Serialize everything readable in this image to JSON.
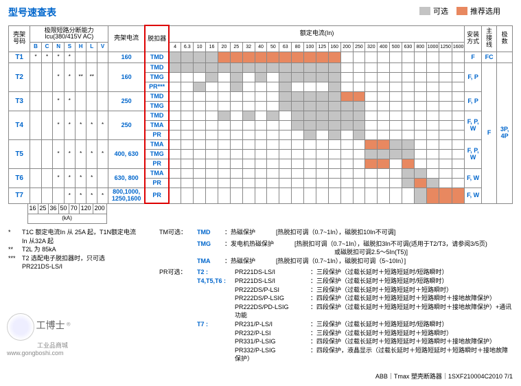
{
  "title": "型号速查表",
  "legend": {
    "optional": "可选",
    "recommended": "推荐选用"
  },
  "colors": {
    "optional": "#c4c4c4",
    "recommended": "#e88860",
    "blue": "#0066cc",
    "red_border": "#d00"
  },
  "headers": {
    "frame": "壳架号码",
    "breaking_capacity": "极限短路分断能力\nIcu(380/415V AC)",
    "cap_cols": [
      "B",
      "C",
      "N",
      "S",
      "H",
      "L",
      "V"
    ],
    "frame_current": "壳架电流",
    "trip_unit": "脱扣器",
    "rated_current": "额定电流(In)",
    "rated_cols": [
      "4",
      "6.3",
      "10",
      "16",
      "20",
      "25",
      "32",
      "40",
      "50",
      "63",
      "80",
      "100",
      "125",
      "160",
      "200",
      "250",
      "320",
      "400",
      "500",
      "630",
      "800",
      "1000",
      "1250",
      "1600"
    ],
    "install": "安装方式",
    "wiring": "主接线",
    "poles": "极数"
  },
  "ka_values": [
    "16",
    "25",
    "36",
    "50",
    "70",
    "120",
    "200"
  ],
  "ka_label": "(kA)",
  "rows": [
    {
      "frame": "T1",
      "caps": [
        "*",
        "*",
        "*",
        "*",
        "",
        "",
        ""
      ],
      "current": "160",
      "trips": [
        {
          "name": "TMD",
          "cells": {
            "0": "o",
            "1": "o",
            "2": "o",
            "3": "o",
            "4": "r",
            "5": "r",
            "6": "r",
            "7": "r",
            "8": "r",
            "9": "r",
            "10": "r",
            "11": "r",
            "12": "r",
            "13": "r"
          }
        }
      ],
      "install": "F",
      "wiring": "FC"
    },
    {
      "frame": "T2",
      "caps": [
        "",
        "",
        "*",
        "*",
        "**",
        "**",
        ""
      ],
      "current": "160",
      "trips": [
        {
          "name": "TMD",
          "cells": {
            "0": "o",
            "1": "o",
            "2": "o",
            "3": "o",
            "4": "o",
            "5": "o",
            "6": "o",
            "7": "o",
            "8": "o",
            "9": "o",
            "10": "o",
            "11": "o",
            "12": "o",
            "13": "o"
          }
        },
        {
          "name": "TMG",
          "cells": {
            "3": "o",
            "5": "o",
            "7": "o",
            "9": "o",
            "10": "o",
            "11": "o",
            "12": "o",
            "13": "o"
          }
        },
        {
          "name": "PR***",
          "cells": {
            "2": "o",
            "5": "o",
            "9": "o",
            "13": "o"
          }
        }
      ],
      "install": "F, P"
    },
    {
      "frame": "T3",
      "caps": [
        "",
        "",
        "*",
        "*",
        "",
        "",
        ""
      ],
      "current": "250",
      "trips": [
        {
          "name": "TMD",
          "cells": {
            "9": "o",
            "10": "o",
            "11": "o",
            "12": "o",
            "13": "o",
            "14": "r",
            "15": "r"
          }
        },
        {
          "name": "TMG",
          "cells": {
            "9": "o",
            "10": "o",
            "11": "o",
            "12": "o",
            "13": "o",
            "14": "o",
            "15": "o"
          }
        }
      ],
      "install": "F, P"
    },
    {
      "frame": "T4",
      "caps": [
        "",
        "",
        "*",
        "*",
        "*",
        "*",
        "*"
      ],
      "current": "250",
      "trips": [
        {
          "name": "TMD",
          "cells": {
            "4": "o",
            "6": "o",
            "8": "o",
            "10": "o",
            "11": "o",
            "12": "o",
            "13": "o",
            "14": "o",
            "15": "o"
          }
        },
        {
          "name": "TMA",
          "cells": {
            "10": "o",
            "11": "o",
            "12": "o",
            "13": "o",
            "14": "o",
            "15": "o"
          }
        },
        {
          "name": "PR",
          "cells": {
            "11": "o",
            "13": "o",
            "15": "o"
          }
        }
      ],
      "install": "F, P, W"
    },
    {
      "frame": "T5",
      "caps": [
        "",
        "",
        "*",
        "*",
        "*",
        "*",
        "*"
      ],
      "current": "400, 630",
      "trips": [
        {
          "name": "TMA",
          "cells": {
            "16": "r",
            "17": "r",
            "18": "o",
            "19": "o"
          }
        },
        {
          "name": "TMG",
          "cells": {
            "16": "o",
            "17": "o",
            "18": "o",
            "19": "o"
          }
        },
        {
          "name": "PR",
          "cells": {
            "16": "r",
            "17": "r",
            "19": "r"
          }
        }
      ],
      "install": "F, P, W"
    },
    {
      "frame": "T6",
      "caps": [
        "",
        "",
        "*",
        "*",
        "*",
        "*",
        ""
      ],
      "current": "630, 800",
      "trips": [
        {
          "name": "TMA",
          "cells": {
            "19": "o",
            "20": "o"
          }
        },
        {
          "name": "PR",
          "cells": {
            "19": "o",
            "20": "r",
            "21": "o"
          }
        }
      ],
      "install": "F, W"
    },
    {
      "frame": "T7",
      "caps": [
        "",
        "",
        "",
        "*",
        "*",
        "*",
        "*"
      ],
      "current": "800,1000,\n1250,1600",
      "trips": [
        {
          "name": "PR",
          "cells": {
            "20": "o",
            "21": "r",
            "22": "r",
            "23": "r"
          }
        }
      ],
      "install": "F, W"
    }
  ],
  "poles_text": "3P,\n4P",
  "wiring_text": "F",
  "tm_options_label": "TM可选：",
  "tm_options": [
    {
      "code": "TMD",
      "name": "热磁保护",
      "desc": "[热脱扣可调（0.7~1In），磁脱扣10In不可调]"
    },
    {
      "code": "TMG",
      "name": "发电机热磁保护",
      "desc": "[热脱扣可调（0.7~1In），磁脱扣3In不可调(适用于T2/T3，请参阅3/5页)\n或磁脱扣可调2.5～5In(T5)]"
    },
    {
      "code": "TMA",
      "name": "热磁保护",
      "desc": "[热脱扣可调（0.7~1In），磁脱扣可调（5~10In）]"
    }
  ],
  "pr_options_label": "PR可选：",
  "pr_groups": [
    {
      "frame": "T2 :",
      "items": [
        {
          "code": "PR221DS-LS/I",
          "desc": "三段保护（过载长延时＋短路短延时/短路瞬时）"
        }
      ]
    },
    {
      "frame": "T4,T5,T6 :",
      "items": [
        {
          "code": "PR221DS-LS/I",
          "desc": "三段保护（过载长延时＋短路短延时/短路瞬时）"
        },
        {
          "code": "PR222DS/P-LSI",
          "desc": "三段保护（过载长延时＋短路短延时＋短路瞬时）"
        },
        {
          "code": "PR222DS/P-LSIG",
          "desc": "四段保护（过载长延时＋短路短延时＋短路瞬时＋接地故障保护）"
        },
        {
          "code": "PR222DS/PD-LSIG",
          "desc": "四段保护（过载长延时＋短路短延时＋短路瞬时＋接地故障保护）+通讯功能"
        }
      ]
    },
    {
      "frame": "T7 :",
      "items": [
        {
          "code": "PR231/P-LS/I",
          "desc": "三段保护（过载长延时＋短路短延时/短路瞬时）"
        },
        {
          "code": "PR232/P-LSI",
          "desc": "三段保护（过载长延时＋短路短延时＋短路瞬时）"
        },
        {
          "code": "PR331/P-LSIG",
          "desc": "四段保护（过载长延时＋短路短延时＋短路瞬时＋接地故障保护）"
        },
        {
          "code": "PR332/P-LSIG",
          "desc": "四段保护，液晶显示（过载长延时＋短路短延时＋短路瞬时＋接地故障保护）"
        }
      ]
    }
  ],
  "footnotes": [
    {
      "mark": "*",
      "text": "T1C 额定电流In 从 25A 起，T1N额定电流\nIn 从32A 起"
    },
    {
      "mark": "**",
      "text": "T2L 为 85kA"
    },
    {
      "mark": "***",
      "text": "T2 选配电子脱扣器时，只可选\nPR221DS-LS/I"
    }
  ],
  "footer": "ABB｜Tmax 塑壳断路器｜1SXF210004C2010  7/1",
  "logo": {
    "brand": "工博士",
    "sub": "工业品商城",
    "url": "www.gongboshi.com",
    "mark": "®"
  }
}
